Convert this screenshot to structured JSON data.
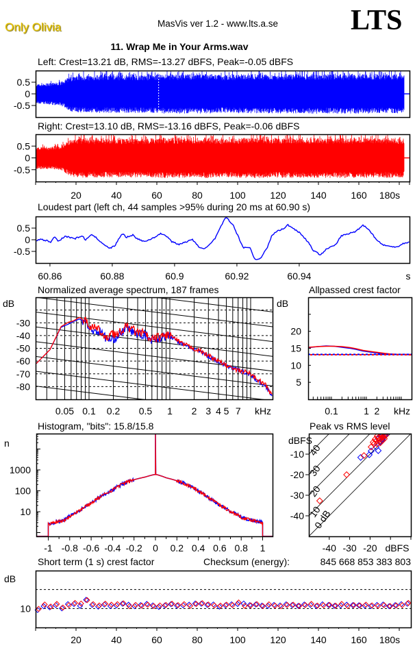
{
  "header": {
    "artist": "Only Olivia",
    "app": "MasVis ver 1.2 - www.lts.a.se",
    "logo": "LTS",
    "file_title": "11. Wrap Me in Your Arms.wav"
  },
  "colors": {
    "left": "#0000ff",
    "right": "#ff0000",
    "artist": "#e8c400"
  },
  "chart_data": [
    {
      "id": "waveform_left",
      "type": "area",
      "title": "Left: Crest=13.21 dB, RMS=-13.27 dBFS, Peak=-0.05 dBFS",
      "ylim": [
        -1,
        1
      ],
      "xlim": [
        0,
        185
      ],
      "yticks": [
        {
          "v": 0.5,
          "label": "0.5"
        },
        {
          "v": 0,
          "label": "0"
        },
        {
          "v": -0.5,
          "label": "-0.5"
        }
      ],
      "envelope_step_s": 5,
      "envelope": [
        0.5,
        0.55,
        0.6,
        0.9,
        0.95,
        0.95,
        0.97,
        0.96,
        0.97,
        0.97,
        0.96,
        0.97,
        1,
        1,
        1,
        0.98,
        1,
        1,
        0.95,
        0.98,
        1,
        1,
        1,
        0.98,
        1,
        1,
        1,
        1,
        1,
        1,
        1,
        1,
        1,
        1,
        1,
        1,
        0.95,
        0.02
      ],
      "marker_s": 60.9
    },
    {
      "id": "waveform_right",
      "type": "area",
      "title": "Right: Crest=13.10 dB, RMS=-13.16 dBFS, Peak=-0.06 dBFS",
      "ylim": [
        -1,
        1
      ],
      "xlim": [
        0,
        185
      ],
      "yticks": [
        {
          "v": 0.5,
          "label": "0.5"
        },
        {
          "v": 0,
          "label": "0"
        },
        {
          "v": -0.5,
          "label": "-0.5"
        }
      ],
      "xticks": [
        {
          "v": 20,
          "label": "20"
        },
        {
          "v": 40,
          "label": "40"
        },
        {
          "v": 60,
          "label": "60"
        },
        {
          "v": 80,
          "label": "80"
        },
        {
          "v": 100,
          "label": "100"
        },
        {
          "v": 120,
          "label": "120"
        },
        {
          "v": 140,
          "label": "140"
        },
        {
          "v": 160,
          "label": "160"
        },
        {
          "v": 180,
          "label": "180s"
        }
      ],
      "envelope_step_s": 5,
      "envelope": [
        0.55,
        0.55,
        0.6,
        0.95,
        1,
        0.97,
        0.97,
        0.98,
        0.97,
        0.97,
        0.96,
        0.97,
        1,
        1,
        1,
        0.98,
        1,
        1,
        0.95,
        0.98,
        1,
        1,
        1,
        0.98,
        1,
        1,
        1,
        1,
        1,
        1,
        1,
        1,
        1,
        1,
        1,
        1,
        0.95,
        0.02
      ]
    },
    {
      "id": "loudest_part",
      "type": "line",
      "title": "Loudest part (left  ch, 44 samples >95% during 20 ms at 60.90 s)",
      "xlim": [
        60.8554,
        60.9754
      ],
      "ylim": [
        -1,
        1
      ],
      "yticks": [
        {
          "v": 0.5,
          "label": "0.5"
        },
        {
          "v": 0,
          "label": "0"
        },
        {
          "v": -0.5,
          "label": "-0.5"
        }
      ],
      "xticks": [
        {
          "v": 60.86,
          "label": "60.86"
        },
        {
          "v": 60.88,
          "label": "60.88"
        },
        {
          "v": 60.9,
          "label": "60.9"
        },
        {
          "v": 60.92,
          "label": "60.92"
        },
        {
          "v": 60.94,
          "label": "60.94"
        }
      ],
      "xunit": "s",
      "t": [
        60.8554,
        60.8571,
        60.8604,
        60.8615,
        60.8626,
        60.8648,
        60.8681,
        60.8703,
        60.8714,
        60.8736,
        60.8769,
        60.8791,
        60.8809,
        60.8831,
        60.8846,
        60.8868,
        60.8879,
        60.8906,
        60.8934,
        60.8956,
        60.8971,
        60.8993,
        60.9015,
        60.9037,
        60.9055,
        60.9077,
        60.9099,
        60.9121,
        60.9132,
        60.915,
        60.9165,
        60.9187,
        60.9209,
        60.922,
        60.9242,
        60.9257,
        60.9275,
        60.9297,
        60.9312,
        60.933,
        60.9352,
        60.9363,
        60.938,
        60.9402,
        60.9429,
        60.9446,
        60.9468,
        60.949,
        60.9517,
        60.9534,
        60.9561,
        60.9583,
        60.9604,
        60.9626,
        60.9648,
        60.9666,
        60.9692,
        60.9714,
        60.9736,
        60.9754
      ],
      "y": [
        -0.05,
        0.03,
        -0.1,
        0.15,
        -0.07,
        0.15,
        0.05,
        0.17,
        0,
        0.22,
        -0.15,
        -0.38,
        -0.25,
        0.27,
        0.1,
        0.22,
        0.04,
        -0.08,
        0.1,
        0.26,
        0.2,
        -0.1,
        -0.2,
        -0.1,
        0.03,
        -0.3,
        -0.38,
        -0.1,
        0.1,
        0.6,
        0.98,
        0.65,
        0,
        -0.33,
        -0.33,
        -0.85,
        -0.8,
        -0.36,
        0.18,
        0.38,
        0.48,
        0.64,
        0.5,
        0.3,
        -0.1,
        -0.48,
        -0.64,
        -0.38,
        -0.22,
        0.16,
        0.27,
        0.37,
        0.64,
        0.4,
        0,
        -0.2,
        -0.3,
        -0.3,
        -0.15,
        -0.1
      ]
    },
    {
      "id": "spectrum",
      "type": "line",
      "title": "Normalized average spectrum, 187 frames",
      "ylabel": "dB",
      "xunit": "kHz",
      "ylim": [
        -90,
        -10
      ],
      "xscale": "log",
      "yticks": [
        {
          "v": -30,
          "label": "-30"
        },
        {
          "v": -40,
          "label": "-40"
        },
        {
          "v": -50,
          "label": "-50"
        },
        {
          "v": -60,
          "label": "-60"
        },
        {
          "v": -70,
          "label": "-70"
        },
        {
          "v": -80,
          "label": "-80"
        }
      ],
      "xticks": [
        {
          "v": 0.05,
          "label": "0.05"
        },
        {
          "v": 0.1,
          "label": "0.1"
        },
        {
          "v": 0.2,
          "label": "0.2"
        },
        {
          "v": 0.5,
          "label": "0.5"
        },
        {
          "v": 1,
          "label": "1"
        },
        {
          "v": 2,
          "label": "2"
        },
        {
          "v": 3,
          "label": "3"
        },
        {
          "v": 4,
          "label": "4"
        },
        {
          "v": 5,
          "label": "5"
        },
        {
          "v": 7,
          "label": "7"
        }
      ],
      "freq_khz": [
        0.0222,
        0.0329,
        0.045,
        0.0557,
        0.0639,
        0.0762,
        0.0963,
        0.106,
        0.139,
        0.163,
        0.187,
        0.218,
        0.292,
        0.4,
        0.486,
        0.579,
        0.677,
        0.98,
        1.34,
        1.8,
        2.45,
        3.29,
        4.76,
        6.5,
        9.4,
        11.9,
        15.9,
        18.7
      ],
      "series": [
        {
          "name": "Left",
          "db": [
            -62,
            -51,
            -33.5,
            -31,
            -29,
            -27,
            -31,
            -36,
            -37,
            -42,
            -44,
            -41,
            -34,
            -39,
            -39,
            -43,
            -42.5,
            -40,
            -46,
            -49.5,
            -53,
            -57.5,
            -63,
            -66.5,
            -69.5,
            -75,
            -80.5,
            -88
          ]
        },
        {
          "name": "Right",
          "db": [
            -62,
            -51,
            -33,
            -29.5,
            -28.5,
            -25.7,
            -30.3,
            -33,
            -36.5,
            -44,
            -36.5,
            -40,
            -33,
            -37.5,
            -38.4,
            -43.8,
            -42,
            -39,
            -45.6,
            -49,
            -52.6,
            -57,
            -62.6,
            -67,
            -69,
            -74,
            -79.5,
            -88.5
          ]
        }
      ]
    },
    {
      "id": "allpassed_crest",
      "type": "line",
      "title": "Allpassed crest factor",
      "ylabel": "dB",
      "xunit": "kHz",
      "ylim": [
        0,
        30
      ],
      "xscale": "log",
      "yticks": [
        {
          "v": 5,
          "label": "5"
        },
        {
          "v": 10,
          "label": "10"
        },
        {
          "v": 15,
          "label": "15"
        },
        {
          "v": 20,
          "label": "20"
        }
      ],
      "xticks": [
        {
          "v": 0.1,
          "label": "0.1"
        },
        {
          "v": 1,
          "label": "1"
        },
        {
          "v": 2,
          "label": "2"
        }
      ],
      "freq_khz": [
        0.022,
        0.04,
        0.07,
        0.12,
        0.2,
        0.35,
        0.5,
        0.8,
        1.5,
        3,
        5,
        8,
        20
      ],
      "series": [
        {
          "name": "Left",
          "crest": [
            15.2,
            15.5,
            15.7,
            15.6,
            15.3,
            15.0,
            14.7,
            14.2,
            13.8,
            13.4,
            13.3,
            13.2,
            13.2
          ],
          "reference": 13.21
        },
        {
          "name": "Right",
          "crest": [
            15.3,
            15.5,
            15.6,
            15.6,
            15.5,
            15.2,
            14.9,
            14.4,
            14.0,
            13.6,
            13.3,
            13.2,
            13.1
          ],
          "reference": 13.1
        }
      ]
    },
    {
      "id": "histogram",
      "type": "line",
      "title": "Histogram, \"bits\": 15.8/15.8",
      "ylabel": "n",
      "yscale": "log",
      "xlim": [
        -1.1,
        1.1
      ],
      "yticks": [
        {
          "v": 10,
          "label": "10"
        },
        {
          "v": 100,
          "label": "100"
        },
        {
          "v": 1000,
          "label": "1000"
        }
      ],
      "xticks": [
        {
          "v": -1,
          "label": "-1"
        },
        {
          "v": -0.8,
          "label": "-0.8"
        },
        {
          "v": -0.6,
          "label": "-0.6"
        },
        {
          "v": -0.4,
          "label": "-0.4"
        },
        {
          "v": -0.2,
          "label": "-0.2"
        },
        {
          "v": 0,
          "label": "0"
        },
        {
          "v": 0.2,
          "label": "0.2"
        },
        {
          "v": 0.4,
          "label": "0.4"
        },
        {
          "v": 0.6,
          "label": "0.6"
        },
        {
          "v": 0.8,
          "label": "0.8"
        },
        {
          "v": 1,
          "label": "1"
        }
      ],
      "x": [
        -1,
        -0.95,
        -0.9,
        -0.85,
        -0.8,
        -0.7,
        -0.6,
        -0.5,
        -0.4,
        -0.3,
        -0.2,
        -0.1,
        -0.01,
        0.01,
        0.1,
        0.2,
        0.3,
        0.4,
        0.5,
        0.6,
        0.7,
        0.8,
        0.85,
        0.9,
        0.95,
        1
      ],
      "n": [
        2.5,
        3,
        3.5,
        4,
        6,
        12,
        25,
        55,
        110,
        220,
        340,
        450,
        600,
        600,
        420,
        300,
        190,
        95,
        45,
        20,
        10,
        5.5,
        4.5,
        4,
        3.5,
        3
      ],
      "zero_spike_n": 50000
    },
    {
      "id": "peak_vs_rms",
      "type": "scatter",
      "title": "Peak vs RMS level",
      "ylabel": "dBFS",
      "xunit": "dBFS",
      "xlim": [
        -50,
        0
      ],
      "ylim": [
        -50,
        0
      ],
      "yticks": [
        {
          "v": -10,
          "label": "-10"
        },
        {
          "v": -20,
          "label": "-20"
        },
        {
          "v": -30,
          "label": "-30"
        },
        {
          "v": -40,
          "label": "-40"
        }
      ],
      "xticks": [
        {
          "v": -40,
          "label": "-40"
        },
        {
          "v": -30,
          "label": "-30"
        },
        {
          "v": -20,
          "label": "-20"
        }
      ],
      "crest_lines": [
        {
          "v": 0,
          "label": "0 dB"
        },
        {
          "v": 10,
          "label": "10"
        },
        {
          "v": 20,
          "label": "20"
        },
        {
          "v": 30,
          "label": "30"
        },
        {
          "v": 40,
          "label": "40"
        }
      ],
      "series": [
        {
          "name": "Left",
          "points": [
            [
              -24.6,
              -11.6
            ],
            [
              -20.4,
              -10.3
            ],
            [
              -19.5,
              -8.5
            ],
            [
              -16,
              -8.3
            ],
            [
              -17,
              -6.5
            ],
            [
              -15,
              -4
            ],
            [
              -14,
              -3
            ],
            [
              -13,
              -1
            ],
            [
              -12.5,
              -0.5
            ],
            [
              -14.5,
              -1.5
            ],
            [
              -16,
              -2.5
            ],
            [
              -13.5,
              -2
            ]
          ]
        },
        {
          "name": "Right",
          "points": [
            [
              -44.7,
              -32.7
            ],
            [
              -31.5,
              -20
            ],
            [
              -23,
              -10.7
            ],
            [
              -19.5,
              -6.5
            ],
            [
              -18,
              -5
            ],
            [
              -17,
              -3.5
            ],
            [
              -16,
              -2
            ],
            [
              -15,
              -1
            ],
            [
              -14,
              -0.5
            ],
            [
              -13,
              -0.3
            ],
            [
              -15.5,
              -3
            ],
            [
              -16.5,
              -1.2
            ],
            [
              -17.5,
              -2.7
            ],
            [
              -14.5,
              -2.2
            ],
            [
              -13.5,
              -1.5
            ],
            [
              -18.5,
              -4.2
            ],
            [
              -16.5,
              -5
            ],
            [
              -15,
              -4.5
            ],
            [
              -13,
              -2.5
            ],
            [
              -12.5,
              -1
            ],
            [
              -14,
              -3.5
            ]
          ]
        }
      ]
    },
    {
      "id": "short_term_crest",
      "type": "scatter",
      "title": "Short term (1 s) crest factor",
      "ylabel": "dB",
      "ylim": [
        0,
        30
      ],
      "xlim": [
        0,
        185
      ],
      "yticks": [
        {
          "v": 10,
          "label": "10"
        }
      ],
      "gridlines_db": [
        10,
        20
      ],
      "xticks": [
        {
          "v": 20,
          "label": "20"
        },
        {
          "v": 40,
          "label": "40"
        },
        {
          "v": 60,
          "label": "60"
        },
        {
          "v": 80,
          "label": "80"
        },
        {
          "v": 100,
          "label": "100"
        },
        {
          "v": 120,
          "label": "120"
        },
        {
          "v": 140,
          "label": "140"
        },
        {
          "v": 160,
          "label": "160"
        },
        {
          "v": 180,
          "label": "180s"
        }
      ],
      "t_start": 1,
      "t_step": 3,
      "series": [
        {
          "name": "Left",
          "crest": [
            9.2,
            11.2,
            10.6,
            11.8,
            10.1,
            12.3,
            12.4,
            11.4,
            14.6,
            11.9,
            11.0,
            12.1,
            11.3,
            11.6,
            12.5,
            12.0,
            11.2,
            11.8,
            12.4,
            11.6,
            10.8,
            11.6,
            12.3,
            11.5,
            11.7,
            12.0,
            12.6,
            12.5,
            11.9,
            12.1,
            11.0,
            11.7,
            12.2,
            12.4,
            12.6,
            11.8,
            12.1,
            11.5,
            11.4,
            11.9,
            11.6,
            12.2,
            11.8,
            11.4,
            12.1,
            11.9,
            11.3,
            12.2,
            11.9,
            11.4,
            11.6,
            12.0,
            11.8,
            11.7,
            11.5,
            11.3,
            11.9,
            12.1,
            11.2,
            11.8,
            12.3,
            12.5
          ]
        },
        {
          "name": "Right",
          "crest": [
            9.8,
            12.1,
            11.0,
            12.4,
            10.5,
            11.8,
            12.9,
            12.6,
            14.4,
            12.3,
            11.6,
            12.5,
            12.0,
            12.3,
            12.7,
            11.2,
            11.9,
            11.5,
            12.0,
            11.3,
            11.6,
            11.9,
            12.5,
            11.8,
            12.3,
            11.4,
            12.4,
            12.8,
            12.1,
            11.6,
            11.5,
            12.0,
            11.8,
            13.2,
            11.4,
            11.6,
            12.3,
            11.3,
            12.2,
            11.5,
            11.2,
            11.9,
            12.0,
            11.4,
            11.8,
            12.4,
            11.5,
            11.7,
            11.9,
            11.5,
            12.4,
            11.3,
            11.8,
            11.6,
            12.0,
            11.6,
            11.4,
            11.8,
            11.3,
            11.6,
            11.8,
            12.9
          ]
        }
      ]
    }
  ],
  "checksum": {
    "label": "Checksum (energy):",
    "value": "845 668 853 383 803"
  }
}
